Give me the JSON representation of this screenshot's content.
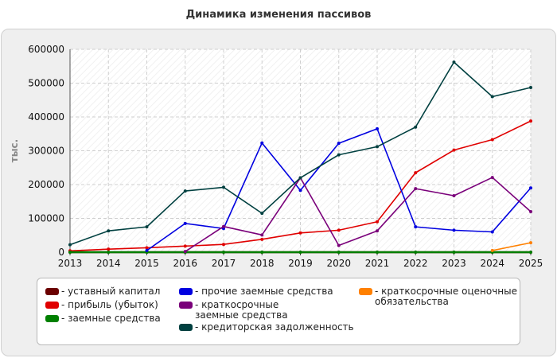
{
  "chart_data": {
    "type": "line",
    "title": "Динамика изменения пассивов",
    "ylabel": "тыс.",
    "xlabel": "",
    "x": [
      "2013",
      "2014",
      "2015",
      "2016",
      "2017",
      "2018",
      "2019",
      "2020",
      "2021",
      "2022",
      "2023",
      "2024",
      "2025"
    ],
    "yticks": [
      "0",
      "100000",
      "200000",
      "300000",
      "400000",
      "500000",
      "600000"
    ],
    "ylim": [
      0,
      600000
    ],
    "grid": true,
    "legend_position": "bottom",
    "series": [
      {
        "name": "- уставный капитал",
        "color": "#6b0000",
        "values": [
          0,
          0,
          0,
          0,
          0,
          0,
          0,
          0,
          0,
          0,
          0,
          0,
          0
        ]
      },
      {
        "name": "- прибыль (убыток)",
        "color": "#e00000",
        "values": [
          4000,
          9000,
          13000,
          18000,
          23000,
          38000,
          57000,
          65000,
          90000,
          235000,
          302000,
          333000,
          388000
        ]
      },
      {
        "name": "- заемные средства",
        "color": "#008000",
        "values": [
          0,
          0,
          0,
          0,
          0,
          0,
          0,
          0,
          0,
          0,
          0,
          0,
          0
        ]
      },
      {
        "name": "- прочие заемные средства",
        "color": "#0000e0",
        "values": [
          null,
          null,
          5000,
          85000,
          70000,
          323000,
          183000,
          322000,
          365000,
          75000,
          65000,
          60000,
          190000
        ]
      },
      {
        "name": "- краткосрочные заемные средства",
        "color": "#7a007a",
        "values": [
          null,
          null,
          null,
          2000,
          76000,
          51000,
          220000,
          20000,
          63000,
          188000,
          167000,
          221000,
          120000
        ]
      },
      {
        "name": "- кредиторская задолженность",
        "color": "#004040",
        "values": [
          22000,
          63000,
          75000,
          181000,
          192000,
          115000,
          220000,
          288000,
          312000,
          370000,
          562000,
          460000,
          487000
        ]
      },
      {
        "name": "- краткосрочные оценочные обязательства",
        "color": "#ff8000",
        "values": [
          null,
          null,
          null,
          null,
          null,
          null,
          null,
          null,
          null,
          null,
          null,
          5000,
          28000
        ]
      }
    ]
  },
  "legend_items": [
    {
      "label": "- уставный капитал",
      "color": "#6b0000"
    },
    {
      "label": "- прибыль (убыток)",
      "color": "#e00000"
    },
    {
      "label": "- заемные средства",
      "color": "#008000"
    },
    {
      "label": "- прочие заемные средства",
      "color": "#0000e0"
    },
    {
      "label": "- краткосрочные заемные средства",
      "color": "#7a007a"
    },
    {
      "label": "- кредиторская задолженность",
      "color": "#004040"
    },
    {
      "label": "- краткосрочные оценочные обязательства",
      "color": "#ff8000"
    }
  ]
}
